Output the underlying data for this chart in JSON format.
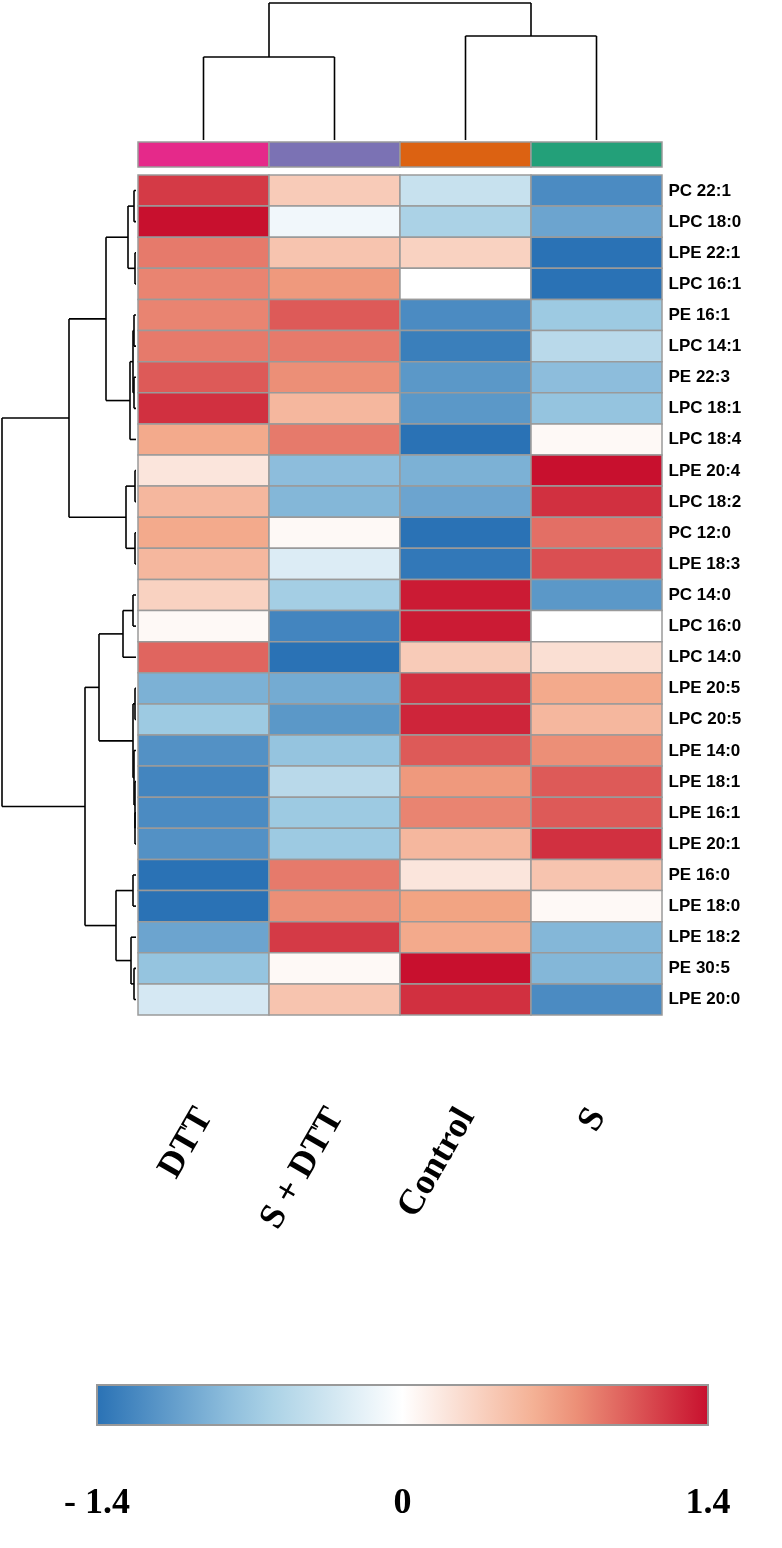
{
  "chart_data": {
    "type": "heatmap",
    "categories": [
      "DTT",
      "S + DTT",
      "Control",
      "S"
    ],
    "y_categories": [
      "PC 22:1",
      "LPC 18:0",
      "LPE 22:1",
      "LPC 16:1",
      "PE 16:1",
      "LPC 14:1",
      "PE 22:3",
      "LPC 18:1",
      "LPC 18:4",
      "LPE 20:4",
      "LPC 18:2",
      "PC 12:0",
      "LPE 18:3",
      "PC 14:0",
      "LPC 16:0",
      "LPC 14:0",
      "LPE 20:5",
      "LPC 20:5",
      "LPE 14:0",
      "LPE 18:1",
      "LPE 16:1",
      "LPE 20:1",
      "PE 16:0",
      "LPE 18:0",
      "LPE 18:2",
      "PE 30:5",
      "LPE 20:0"
    ],
    "cells": [
      [
        1.2,
        0.4,
        -0.4,
        -1.2
      ],
      [
        1.4,
        -0.1,
        -0.6,
        -1.0
      ],
      [
        0.9,
        0.45,
        0.35,
        -1.4
      ],
      [
        0.85,
        0.75,
        0,
        -1.4
      ],
      [
        0.85,
        1.05,
        -1.2,
        -0.7
      ],
      [
        0.9,
        0.9,
        -1.3,
        -0.5
      ],
      [
        1.05,
        0.8,
        -1.1,
        -0.8
      ],
      [
        1.25,
        0.55,
        -1.1,
        -0.75
      ],
      [
        0.65,
        0.9,
        -1.4,
        0.05
      ],
      [
        0.2,
        -0.8,
        -0.9,
        1.4
      ],
      [
        0.55,
        -0.85,
        -1.0,
        1.25
      ],
      [
        0.65,
        0.05,
        -1.4,
        0.95
      ],
      [
        0.55,
        -0.25,
        -1.35,
        1.1
      ],
      [
        0.35,
        -0.65,
        1.35,
        -1.1
      ],
      [
        0.05,
        -1.25,
        1.35,
        0
      ],
      [
        1.0,
        -1.4,
        0.4,
        0.25
      ],
      [
        -0.9,
        -0.95,
        1.25,
        0.65
      ],
      [
        -0.7,
        -1.1,
        1.3,
        0.55
      ],
      [
        -1.15,
        -0.75,
        1.05,
        0.8
      ],
      [
        -1.25,
        -0.5,
        0.75,
        1.05
      ],
      [
        -1.2,
        -0.7,
        0.85,
        1.05
      ],
      [
        -1.15,
        -0.7,
        0.55,
        1.25
      ],
      [
        -1.4,
        0.9,
        0.2,
        0.45
      ],
      [
        -1.4,
        0.8,
        0.7,
        0.05
      ],
      [
        -1.0,
        1.2,
        0.65,
        -0.85
      ],
      [
        -0.75,
        0.05,
        1.4,
        -0.85
      ],
      [
        -0.3,
        0.45,
        1.25,
        -1.2
      ]
    ],
    "clim": [
      -1.4,
      1.4
    ],
    "cticks": [
      {
        "value": -1.4,
        "label": "- 1.4"
      },
      0,
      1.4
    ]
  }
}
